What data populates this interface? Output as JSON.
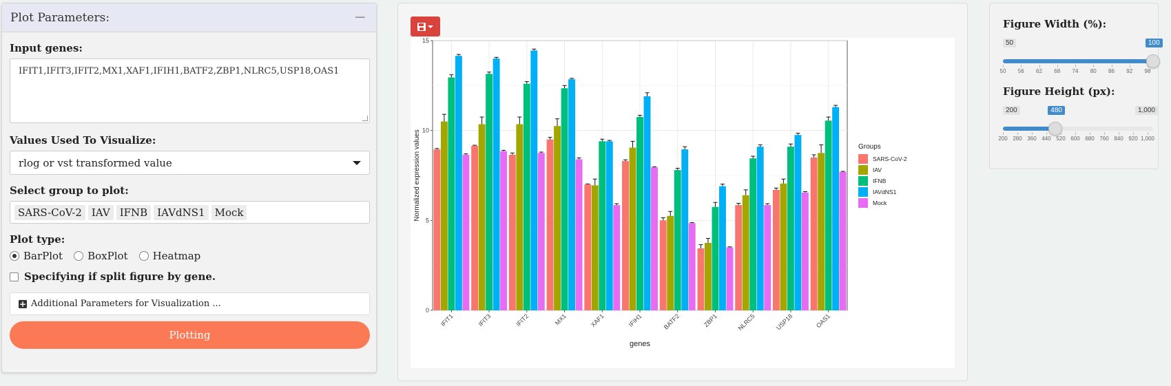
{
  "panel": {
    "title": "Plot Parameters:",
    "collapse_symbol": "−",
    "input_genes_label": "Input genes:",
    "input_genes_value": "IFIT1,IFIT3,IFIT2,MX1,XAF1,IFIH1,BATF2,ZBP1,NLRC5,USP18,OAS1",
    "values_label": "Values Used To Visualize:",
    "values_selected": "rlog or vst transformed value",
    "group_label": "Select group to plot:",
    "groups": [
      "SARS-CoV-2",
      "IAV",
      "IFNB",
      "IAVdNS1",
      "Mock"
    ],
    "plot_type_label": "Plot type:",
    "plot_types": [
      {
        "label": "BarPlot",
        "checked": true
      },
      {
        "label": "BoxPlot",
        "checked": false
      },
      {
        "label": "Heatmap",
        "checked": false
      }
    ],
    "split_label": "Specifying if split figure by gene.",
    "additional_label": "Additional Parameters for Visualization ...",
    "plot_button": "Plotting"
  },
  "toolbar": {
    "save_icon": "floppy-disk-icon"
  },
  "sliders": {
    "width": {
      "label": "Figure Width (%):",
      "min_label": "50",
      "max_label": "100",
      "value_label": "100",
      "min": 50,
      "max": 100,
      "value": 100,
      "ticks": [
        "50",
        "56",
        "62",
        "68",
        "74",
        "80",
        "86",
        "92",
        "98"
      ]
    },
    "height": {
      "label": "Figure Height (px):",
      "min_label": "200",
      "max_label": "1,000",
      "value_label": "480",
      "min": 200,
      "max": 1000,
      "value": 480,
      "ticks": [
        "200",
        "280",
        "360",
        "440",
        "520",
        "600",
        "680",
        "760",
        "840",
        "920",
        "1,000"
      ]
    }
  },
  "chart_data": {
    "type": "bar",
    "xlabel": "genes",
    "ylabel": "Normalized expression values",
    "ylim": [
      0,
      15
    ],
    "yticks": [
      0,
      5,
      10,
      15
    ],
    "categories": [
      "IFIT1",
      "IFIT3",
      "IFIT2",
      "MX1",
      "XAF1",
      "IFIH1",
      "BATF2",
      "ZBP1",
      "NLRC5",
      "USP18",
      "OAS1"
    ],
    "legend_title": "Groups",
    "legend_position": "right",
    "grid": true,
    "series": [
      {
        "name": "SARS-CoV-2",
        "color": "#F8766D",
        "values": [
          8.95,
          9.15,
          8.65,
          9.5,
          7.0,
          8.3,
          5.0,
          3.45,
          5.85,
          6.7,
          8.5
        ],
        "errors": [
          0.05,
          0.03,
          0.1,
          0.12,
          0.03,
          0.07,
          0.15,
          0.2,
          0.1,
          0.1,
          0.15
        ]
      },
      {
        "name": "IAV",
        "color": "#A3A500",
        "values": [
          10.5,
          10.35,
          10.35,
          10.25,
          6.95,
          9.05,
          5.25,
          3.75,
          6.4,
          7.05,
          8.75
        ],
        "errors": [
          0.4,
          0.4,
          0.4,
          0.4,
          0.35,
          0.35,
          0.25,
          0.25,
          0.3,
          0.25,
          0.45
        ]
      },
      {
        "name": "IFNB",
        "color": "#00BF7D",
        "values": [
          12.95,
          13.15,
          12.6,
          12.35,
          9.4,
          10.75,
          7.8,
          5.75,
          8.45,
          9.1,
          10.55
        ],
        "errors": [
          0.15,
          0.1,
          0.12,
          0.15,
          0.12,
          0.1,
          0.1,
          0.25,
          0.12,
          0.15,
          0.2
        ]
      },
      {
        "name": "IAVdNS1",
        "color": "#00B0F6",
        "values": [
          14.15,
          14.0,
          14.45,
          12.85,
          9.4,
          11.9,
          8.95,
          6.9,
          9.1,
          9.75,
          11.3
        ],
        "errors": [
          0.08,
          0.07,
          0.08,
          0.05,
          0.05,
          0.2,
          0.15,
          0.12,
          0.1,
          0.1,
          0.1
        ]
      },
      {
        "name": "Mock",
        "color": "#E76BF3",
        "values": [
          8.65,
          8.85,
          8.75,
          8.4,
          5.85,
          7.95,
          4.85,
          3.5,
          5.85,
          6.55,
          7.7
        ],
        "errors": [
          0.05,
          0.05,
          0.05,
          0.08,
          0.08,
          0.03,
          0.03,
          0.03,
          0.08,
          0.05,
          0.03
        ]
      }
    ]
  }
}
